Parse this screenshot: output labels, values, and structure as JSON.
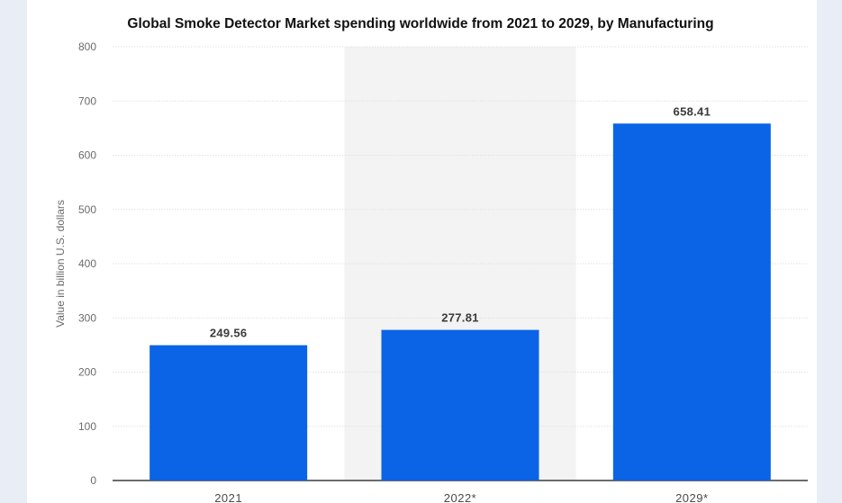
{
  "chart_data": {
    "type": "bar",
    "title": "Global Smoke Detector Market spending worldwide from 2021 to 2029, by Manufacturing",
    "ylabel": "Value in billion U.S. dollars",
    "xlabel": "",
    "categories": [
      "2021",
      "2022*",
      "2029*"
    ],
    "values": [
      249.56,
      277.81,
      658.41
    ],
    "value_labels": [
      "249.56",
      "277.81",
      "658.41"
    ],
    "ylim": [
      0,
      800
    ],
    "yticks": [
      0,
      100,
      200,
      300,
      400,
      500,
      600,
      700,
      800
    ],
    "grid": true,
    "highlighted_category": "2022*",
    "colors": {
      "bar": "#0b63e5",
      "highlight_band": "#f3f3f3",
      "grid": "#e2e2e2",
      "axis": "#3c3c3c"
    }
  }
}
